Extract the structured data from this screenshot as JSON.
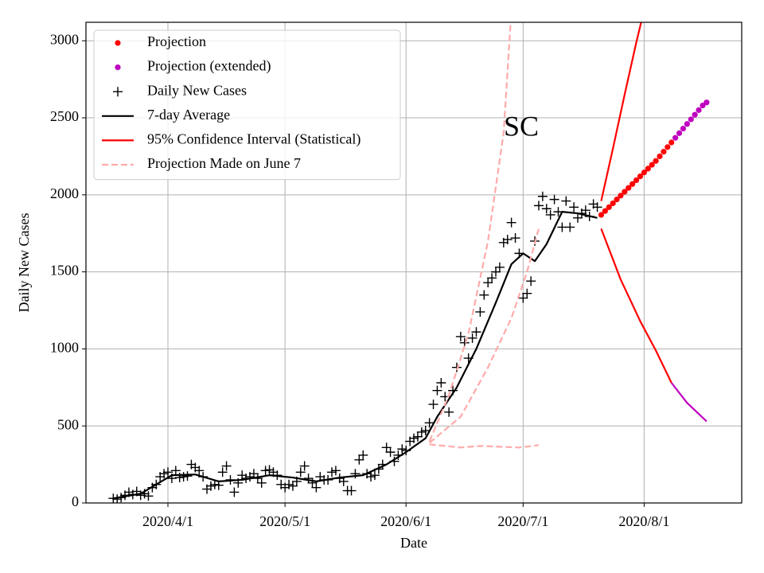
{
  "chart_data": {
    "type": "line",
    "annotation": "SC",
    "xlabel": "Date",
    "ylabel": "Daily New Cases",
    "xlim": [
      "2020-03-11",
      "2020-08-26"
    ],
    "ylim": [
      0,
      3120
    ],
    "xticks": [
      {
        "value": "2020-04-01",
        "label": "2020/4/1"
      },
      {
        "value": "2020-05-01",
        "label": "2020/5/1"
      },
      {
        "value": "2020-06-01",
        "label": "2020/6/1"
      },
      {
        "value": "2020-07-01",
        "label": "2020/7/1"
      },
      {
        "value": "2020-08-01",
        "label": "2020/8/1"
      }
    ],
    "yticks": [
      0,
      500,
      1000,
      1500,
      2000,
      2500,
      3000
    ],
    "grid": true,
    "legend": "upper left",
    "series": [
      {
        "name": "Projection",
        "color": "#ff0000",
        "marker": "dot",
        "x": [
          "2020-07-21",
          "2020-07-22",
          "2020-07-23",
          "2020-07-24",
          "2020-07-25",
          "2020-07-26",
          "2020-07-27",
          "2020-07-28",
          "2020-07-29",
          "2020-07-30",
          "2020-07-31",
          "2020-08-01",
          "2020-08-02",
          "2020-08-03",
          "2020-08-04",
          "2020-08-05",
          "2020-08-06",
          "2020-08-07",
          "2020-08-08"
        ],
        "values": [
          1870,
          1895,
          1920,
          1945,
          1970,
          1995,
          2020,
          2045,
          2070,
          2095,
          2120,
          2145,
          2170,
          2195,
          2220,
          2250,
          2280,
          2310,
          2340
        ]
      },
      {
        "name": "Projection (extended)",
        "color": "#bf00bf",
        "marker": "dot",
        "x": [
          "2020-08-09",
          "2020-08-10",
          "2020-08-11",
          "2020-08-12",
          "2020-08-13",
          "2020-08-14",
          "2020-08-15",
          "2020-08-16",
          "2020-08-17"
        ],
        "values": [
          2370,
          2400,
          2430,
          2460,
          2490,
          2520,
          2550,
          2580,
          2600
        ]
      },
      {
        "name": "Daily New Cases",
        "color": "#000000",
        "marker": "plus",
        "x": [
          "2020-03-18",
          "2020-03-19",
          "2020-03-20",
          "2020-03-21",
          "2020-03-22",
          "2020-03-23",
          "2020-03-24",
          "2020-03-25",
          "2020-03-26",
          "2020-03-27",
          "2020-03-28",
          "2020-03-29",
          "2020-03-30",
          "2020-03-31",
          "2020-04-01",
          "2020-04-02",
          "2020-04-03",
          "2020-04-04",
          "2020-04-05",
          "2020-04-06",
          "2020-04-07",
          "2020-04-08",
          "2020-04-09",
          "2020-04-10",
          "2020-04-11",
          "2020-04-12",
          "2020-04-13",
          "2020-04-14",
          "2020-04-15",
          "2020-04-16",
          "2020-04-17",
          "2020-04-18",
          "2020-04-19",
          "2020-04-20",
          "2020-04-21",
          "2020-04-22",
          "2020-04-23",
          "2020-04-24",
          "2020-04-25",
          "2020-04-26",
          "2020-04-27",
          "2020-04-28",
          "2020-04-29",
          "2020-04-30",
          "2020-05-01",
          "2020-05-02",
          "2020-05-03",
          "2020-05-04",
          "2020-05-05",
          "2020-05-06",
          "2020-05-07",
          "2020-05-08",
          "2020-05-09",
          "2020-05-10",
          "2020-05-11",
          "2020-05-12",
          "2020-05-13",
          "2020-05-14",
          "2020-05-15",
          "2020-05-16",
          "2020-05-17",
          "2020-05-18",
          "2020-05-19",
          "2020-05-20",
          "2020-05-21",
          "2020-05-22",
          "2020-05-23",
          "2020-05-24",
          "2020-05-25",
          "2020-05-26",
          "2020-05-27",
          "2020-05-28",
          "2020-05-29",
          "2020-05-30",
          "2020-05-31",
          "2020-06-01",
          "2020-06-02",
          "2020-06-03",
          "2020-06-04",
          "2020-06-05",
          "2020-06-06",
          "2020-06-07",
          "2020-06-08",
          "2020-06-09",
          "2020-06-10",
          "2020-06-11",
          "2020-06-12",
          "2020-06-13",
          "2020-06-14",
          "2020-06-15",
          "2020-06-16",
          "2020-06-17",
          "2020-06-18",
          "2020-06-19",
          "2020-06-20",
          "2020-06-21",
          "2020-06-22",
          "2020-06-23",
          "2020-06-24",
          "2020-06-25",
          "2020-06-26",
          "2020-06-27",
          "2020-06-28",
          "2020-06-29",
          "2020-06-30",
          "2020-07-01",
          "2020-07-02",
          "2020-07-03",
          "2020-07-04",
          "2020-07-05",
          "2020-07-06",
          "2020-07-07",
          "2020-07-08",
          "2020-07-09",
          "2020-07-10",
          "2020-07-11",
          "2020-07-12",
          "2020-07-13",
          "2020-07-14",
          "2020-07-15",
          "2020-07-16",
          "2020-07-17",
          "2020-07-18",
          "2020-07-19",
          "2020-07-20"
        ],
        "values": [
          30,
          25,
          35,
          50,
          70,
          55,
          75,
          50,
          60,
          45,
          100,
          120,
          170,
          190,
          200,
          160,
          210,
          165,
          170,
          175,
          250,
          230,
          210,
          170,
          90,
          110,
          120,
          115,
          200,
          240,
          150,
          70,
          130,
          180,
          160,
          170,
          190,
          160,
          130,
          210,
          215,
          200,
          180,
          120,
          100,
          120,
          110,
          140,
          200,
          240,
          160,
          130,
          100,
          170,
          150,
          150,
          200,
          210,
          160,
          140,
          80,
          80,
          190,
          280,
          310,
          190,
          170,
          180,
          220,
          250,
          360,
          330,
          270,
          310,
          350,
          340,
          400,
          420,
          430,
          460,
          470,
          520,
          640,
          730,
          780,
          690,
          590,
          730,
          880,
          1080,
          1040,
          940,
          1070,
          1110,
          1240,
          1350,
          1430,
          1460,
          1500,
          1530,
          1690,
          1710,
          1820,
          1720,
          1620,
          1330,
          1360,
          1440,
          1700,
          1930,
          1990,
          1910,
          1870,
          1970,
          1890,
          1790,
          1960,
          1790,
          1920,
          1850,
          1880,
          1900,
          1860,
          1940,
          1920
        ]
      },
      {
        "name": "7-day Average",
        "color": "#000000",
        "x": [
          "2020-03-18",
          "2020-03-25",
          "2020-03-31",
          "2020-04-02",
          "2020-04-08",
          "2020-04-14",
          "2020-04-20",
          "2020-04-27",
          "2020-05-03",
          "2020-05-09",
          "2020-05-15",
          "2020-05-21",
          "2020-05-27",
          "2020-06-01",
          "2020-06-06",
          "2020-06-09",
          "2020-06-14",
          "2020-06-19",
          "2020-06-24",
          "2020-06-28",
          "2020-07-01",
          "2020-07-04",
          "2020-07-07",
          "2020-07-11",
          "2020-07-15",
          "2020-07-20"
        ],
        "values": [
          30,
          60,
          150,
          180,
          185,
          140,
          150,
          180,
          165,
          140,
          165,
          180,
          250,
          330,
          420,
          560,
          750,
          1000,
          1300,
          1550,
          1620,
          1570,
          1680,
          1890,
          1880,
          1850
        ]
      },
      {
        "name": "95% Confidence Interval (Statistical)",
        "color": "#ff0000",
        "x": [
          "2020-07-21",
          "2020-07-24",
          "2020-07-27",
          "2020-07-30",
          "2020-08-01"
        ],
        "values": [
          1960,
          2300,
          2650,
          2990,
          3200
        ]
      },
      {
        "name": "Projection Made on June 7",
        "color": "#ffaaaa",
        "dash": true,
        "x": [
          "2020-06-07",
          "2020-06-15",
          "2020-06-22",
          "2020-06-28",
          "2020-07-02",
          "2020-07-05"
        ],
        "values": [
          390,
          560,
          880,
          1200,
          1500,
          1780
        ]
      },
      {
        "color": "#ff0000",
        "x": [
          "2020-07-21",
          "2020-07-26",
          "2020-07-31",
          "2020-08-04",
          "2020-08-08"
        ],
        "values": [
          1780,
          1450,
          1180,
          990,
          780
        ]
      },
      {
        "color": "#bf00bf",
        "x": [
          "2020-08-08",
          "2020-08-12",
          "2020-08-17"
        ],
        "values": [
          780,
          650,
          530
        ]
      },
      {
        "color": "#ffaaaa",
        "dash": true,
        "x": [
          "2020-06-07",
          "2020-06-12",
          "2020-06-17",
          "2020-06-22",
          "2020-06-26",
          "2020-06-28"
        ],
        "values": [
          400,
          700,
          1100,
          1700,
          2400,
          3200
        ]
      },
      {
        "color": "#ffaaaa",
        "dash": true,
        "x": [
          "2020-06-07",
          "2020-06-15",
          "2020-06-20",
          "2020-06-30",
          "2020-07-05"
        ],
        "values": [
          380,
          360,
          370,
          360,
          375
        ]
      }
    ]
  }
}
